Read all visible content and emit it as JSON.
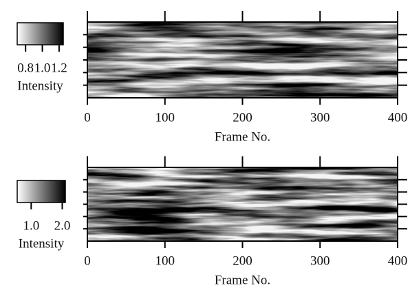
{
  "chart_data": [
    {
      "type": "heatmap",
      "xlabel": "Frame No.",
      "xlim": [
        0,
        400
      ],
      "xticks": [
        0,
        100,
        200,
        300,
        400
      ],
      "colorbar": {
        "label": "Intensity",
        "clim": [
          0.7,
          1.25
        ],
        "ticks": [
          0.8,
          {
            "value": 1,
            "label": "1.0"
          },
          1.2
        ]
      }
    },
    {
      "type": "heatmap",
      "xlabel": "Frame No.",
      "xlim": [
        0,
        400
      ],
      "xticks": [
        0,
        100,
        200,
        300,
        400
      ],
      "colorbar": {
        "label": "Intensity",
        "clim": [
          0.55,
          2.1
        ],
        "ticks": [
          {
            "value": 1,
            "label": "1.0"
          },
          {
            "value": 2,
            "label": "2.0"
          }
        ]
      }
    }
  ]
}
